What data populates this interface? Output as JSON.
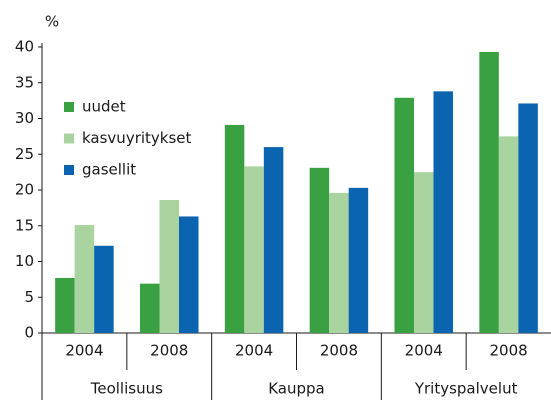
{
  "chart_data": {
    "type": "bar",
    "y_unit": "%",
    "categories": [
      "2004",
      "2008",
      "2004",
      "2008",
      "2004",
      "2008"
    ],
    "groups": [
      "Teollisuus",
      "Kauppa",
      "Yrityspalvelut"
    ],
    "series": [
      {
        "name": "uudet",
        "color": "#3aa142",
        "values": [
          7.7,
          6.9,
          29.1,
          23.1,
          32.9,
          39.3
        ]
      },
      {
        "name": "kasvuyritykset",
        "color": "#a9d4a0",
        "values": [
          15.1,
          18.6,
          23.3,
          19.6,
          22.5,
          27.5
        ]
      },
      {
        "name": "gasellit",
        "color": "#0a64b0",
        "values": [
          12.2,
          16.3,
          26.0,
          20.3,
          33.8,
          32.1
        ]
      }
    ],
    "ylim": [
      0,
      40
    ],
    "yticks": [
      0,
      5,
      10,
      15,
      20,
      25,
      30,
      35,
      40
    ],
    "legend": "upper left"
  }
}
